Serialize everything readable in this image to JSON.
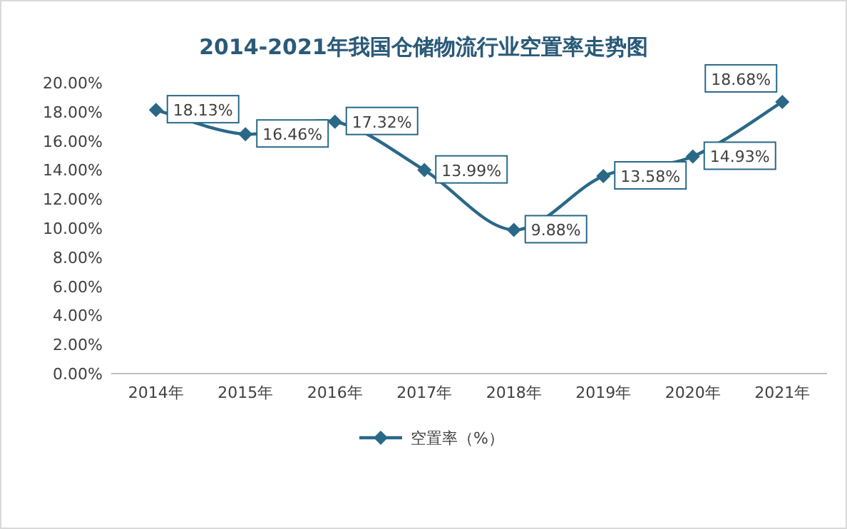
{
  "chart_data": {
    "type": "line",
    "title": "2014-2021年我国仓储物流行业空置率走势图",
    "categories": [
      "2014年",
      "2015年",
      "2016年",
      "2017年",
      "2018年",
      "2019年",
      "2020年",
      "2021年"
    ],
    "series": [
      {
        "name": "空置率（%）",
        "color": "#2a6888",
        "values": [
          18.13,
          16.46,
          17.32,
          13.99,
          9.88,
          13.58,
          14.93,
          18.68
        ],
        "value_labels": [
          "18.13%",
          "16.46%",
          "17.32%",
          "13.99%",
          "9.88%",
          "13.58%",
          "14.93%",
          "18.68%"
        ]
      }
    ],
    "ylim": [
      0,
      20
    ],
    "yticks": [
      {
        "value": 0,
        "label": "0.00%"
      },
      {
        "value": 2,
        "label": "2.00%"
      },
      {
        "value": 4,
        "label": "4.00%"
      },
      {
        "value": 6,
        "label": "6.00%"
      },
      {
        "value": 8,
        "label": "8.00%"
      },
      {
        "value": 10,
        "label": "10.00%"
      },
      {
        "value": 12,
        "label": "12.00%"
      },
      {
        "value": 14,
        "label": "14.00%"
      },
      {
        "value": 16,
        "label": "16.00%"
      },
      {
        "value": 18,
        "label": "18.00%"
      },
      {
        "value": 20,
        "label": "20.00%"
      }
    ],
    "grid": false,
    "legend": "bottom",
    "marker": "diamond",
    "line_style": "solid"
  }
}
